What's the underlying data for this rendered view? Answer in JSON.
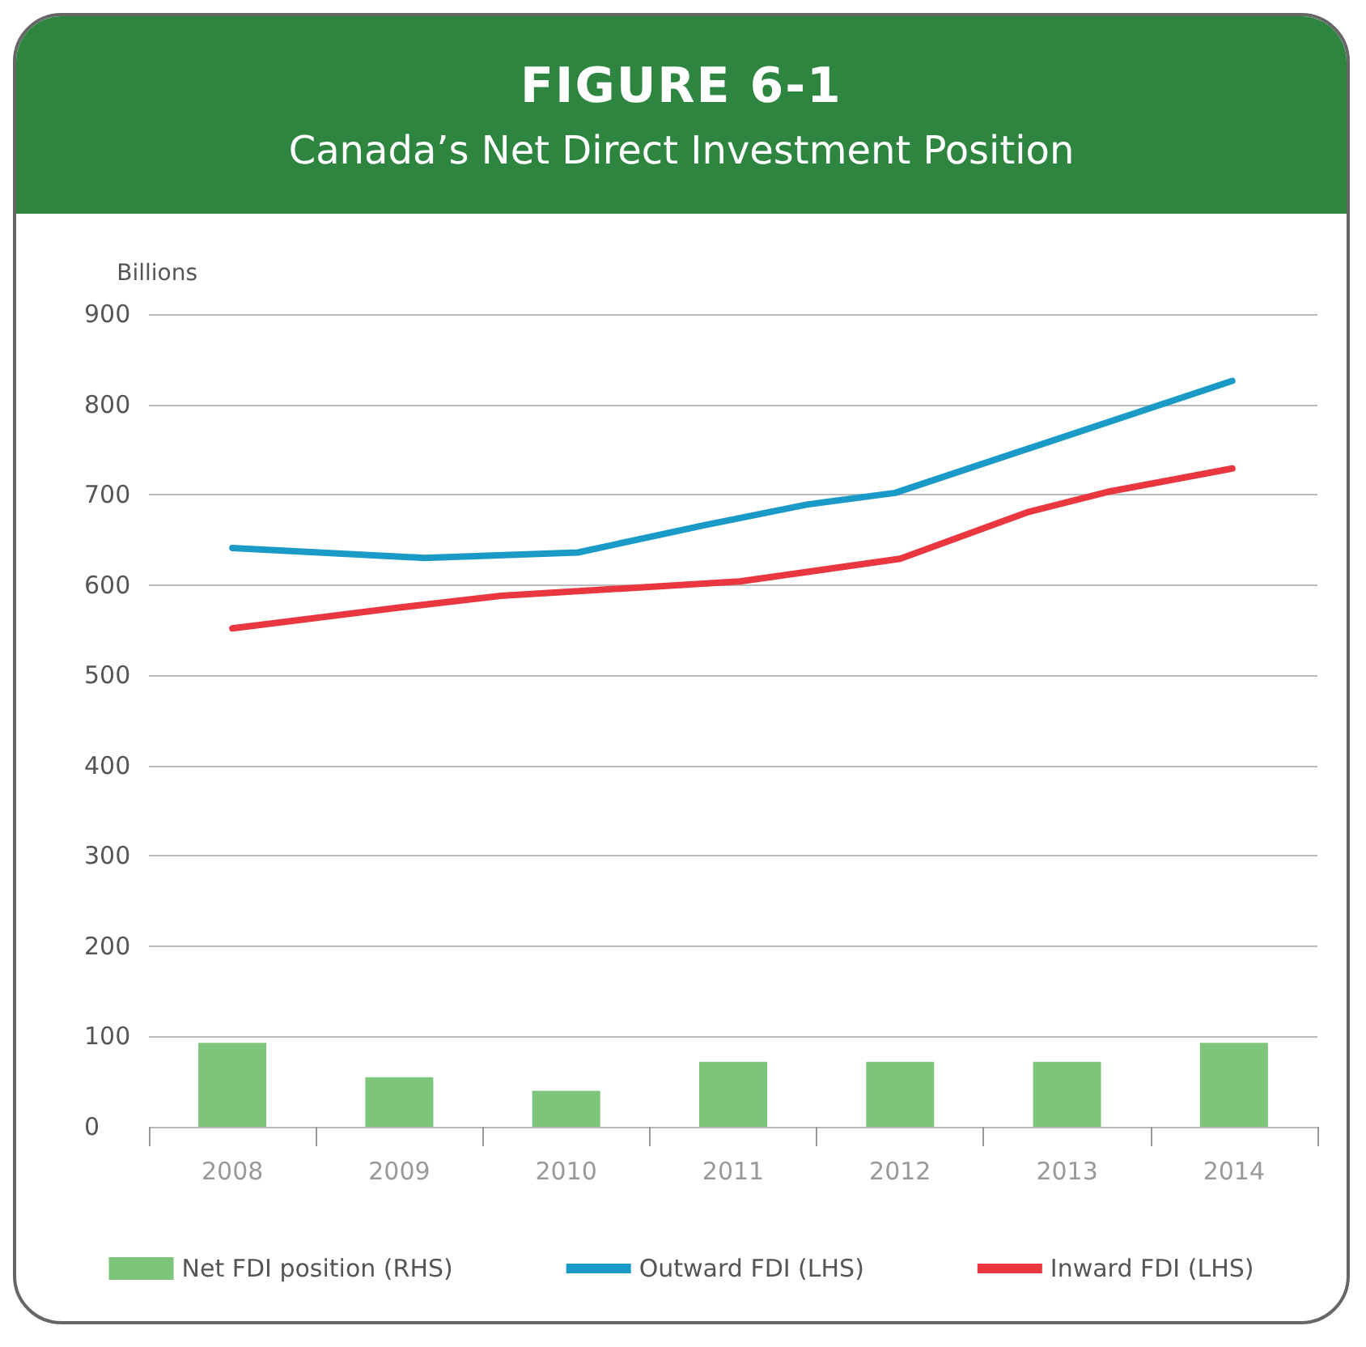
{
  "chart_data": {
    "type": "bar",
    "title": "FIGURE 6-1",
    "subtitle": "Canada’s Net Direct Investment Position",
    "ylabel": "Billions",
    "series": [
      {
        "name": "Net FDI position (RHS)",
        "type": "bar",
        "color": "#7dc57a",
        "x": [
          2008,
          2009,
          2010,
          2011,
          2012,
          2013,
          2014
        ],
        "values": [
          93,
          55,
          40,
          72,
          72,
          72,
          93
        ]
      },
      {
        "name": "Outward FDI (LHS)",
        "type": "line",
        "color": "#1a9bc7",
        "x": [
          2008,
          2009.15,
          2010.07,
          2010.82,
          2011.44,
          2011.97,
          2013.99
        ],
        "values": [
          641,
          630,
          636,
          666,
          689,
          702,
          826
        ]
      },
      {
        "name": "Inward FDI (LHS)",
        "type": "line",
        "color": "#e9363f",
        "x": [
          2008,
          2009,
          2009.61,
          2011.04,
          2012,
          2012.77,
          2013.24,
          2013.99
        ],
        "values": [
          552,
          575,
          588,
          604,
          629,
          681,
          703,
          729
        ]
      }
    ],
    "xlim": [
      2007.5,
      2014.5
    ],
    "xticks": [
      {
        "value": 2007.5,
        "label": null
      },
      {
        "value": 2008,
        "label": "2008"
      },
      {
        "value": 2008.5,
        "label": null
      },
      {
        "value": 2009,
        "label": "2009"
      },
      {
        "value": 2009.5,
        "label": null
      },
      {
        "value": 2010,
        "label": "2010"
      },
      {
        "value": 2010.5,
        "label": null
      },
      {
        "value": 2011,
        "label": "2011"
      },
      {
        "value": 2011.5,
        "label": null
      },
      {
        "value": 2012,
        "label": "2012"
      },
      {
        "value": 2012.5,
        "label": null
      },
      {
        "value": 2013,
        "label": "2013"
      },
      {
        "value": 2013.5,
        "label": null
      },
      {
        "value": 2014,
        "label": "2014"
      },
      {
        "value": 2014.5,
        "label": null
      }
    ],
    "ylim": [
      0,
      900
    ],
    "yticks": [
      0,
      100,
      200,
      300,
      400,
      500,
      600,
      700,
      800,
      900
    ],
    "grid": "y",
    "legend": "bottom",
    "marker": "none",
    "line_style": "solid"
  }
}
